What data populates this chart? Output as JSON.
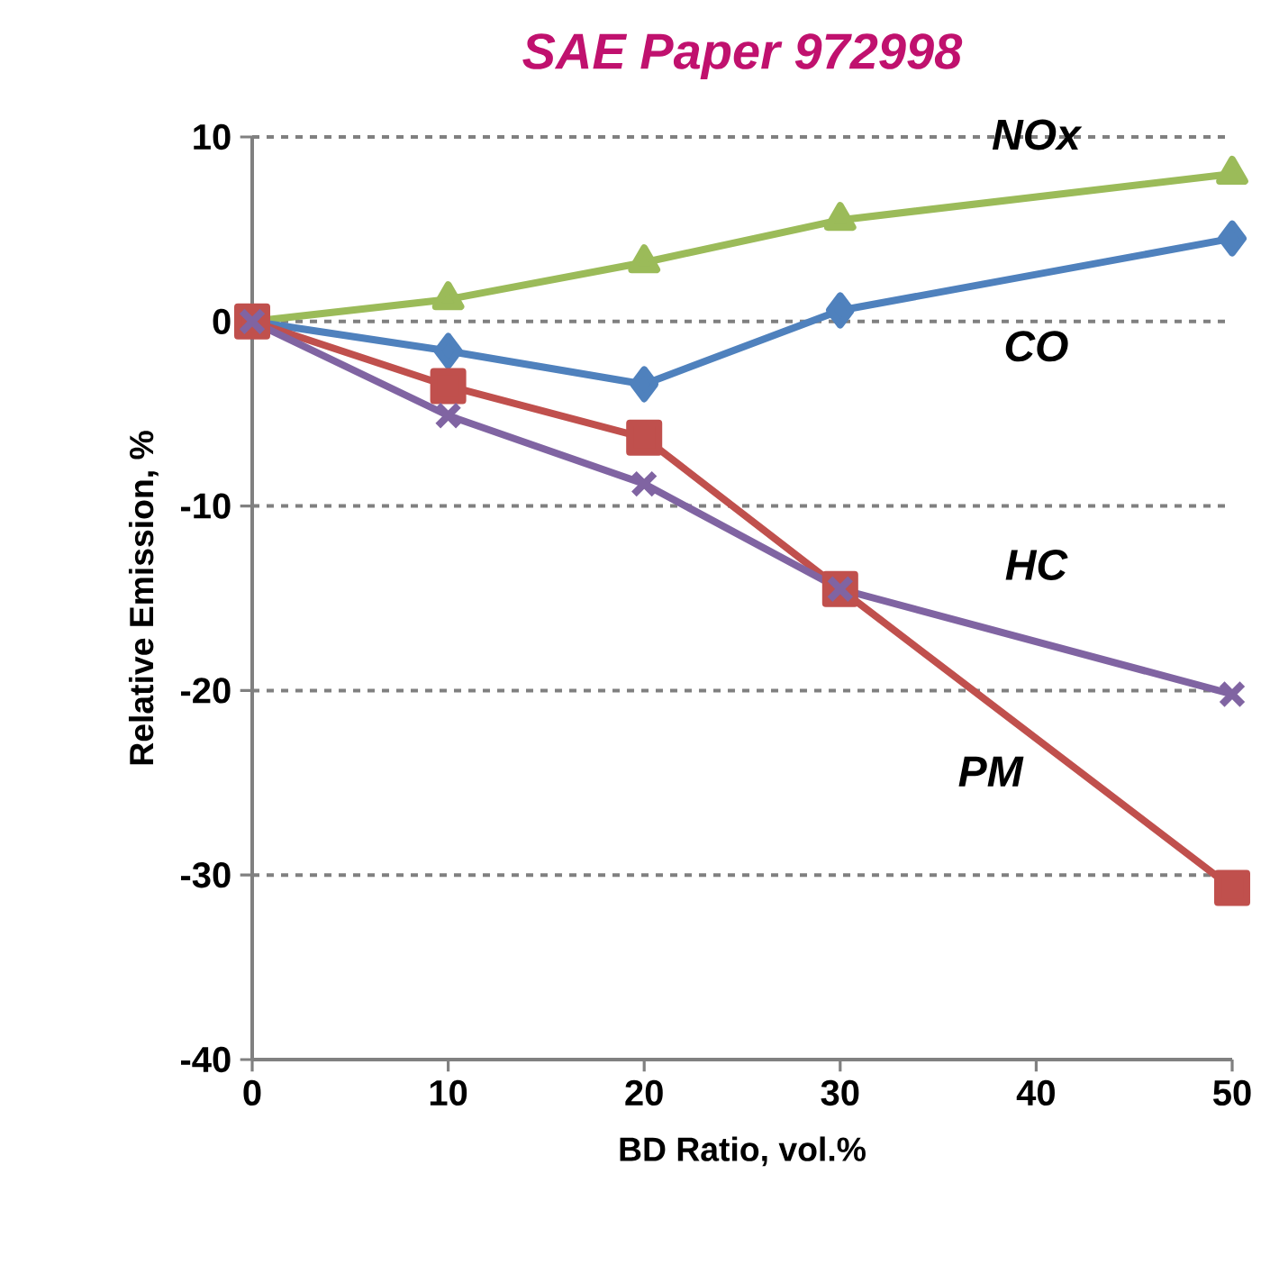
{
  "chart_data": {
    "type": "line",
    "title": "SAE Paper 972998",
    "xlabel": "BD Ratio, vol.%",
    "ylabel": "Relative Emission, %",
    "x": [
      0,
      10,
      20,
      30,
      50
    ],
    "xlim": [
      0,
      50
    ],
    "xticks": [
      0,
      10,
      20,
      30,
      40,
      50
    ],
    "ylim": [
      -40,
      10
    ],
    "yticks": [
      -40,
      -30,
      -20,
      -10,
      0,
      10
    ],
    "grid": "y",
    "line_style": "solid",
    "series": [
      {
        "name": "NOx",
        "color": "#9bbb59",
        "marker": "triangle",
        "values": [
          0,
          1.2,
          3.2,
          5.5,
          8.0
        ]
      },
      {
        "name": "CO",
        "color": "#4f81bd",
        "marker": "diamond",
        "values": [
          0,
          -1.6,
          -3.4,
          0.6,
          4.5
        ]
      },
      {
        "name": "PM",
        "color": "#c0504d",
        "marker": "square",
        "values": [
          0,
          -3.5,
          -6.3,
          -14.5,
          -30.7
        ]
      },
      {
        "name": "HC",
        "color": "#8064a2",
        "marker": "cross",
        "values": [
          0,
          -5.1,
          -8.8,
          -14.5,
          -20.2
        ]
      }
    ]
  }
}
